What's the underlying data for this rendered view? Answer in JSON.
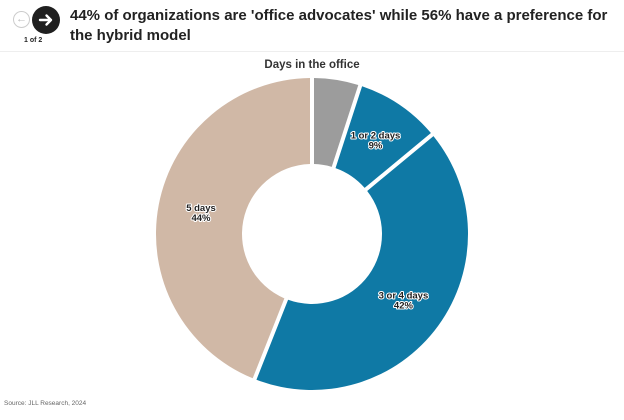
{
  "nav": {
    "count_text": "1 of 2",
    "prev_icon": "arrow-left-icon",
    "next_icon": "arrow-right-icon"
  },
  "headline": "44% of organizations are 'office advocates' while 56% have a preference for the hybrid model",
  "source": "Source: JLL Research, 2024",
  "chart_data": {
    "type": "pie",
    "style": "donut",
    "title": "Days in the office",
    "categories": [
      "",
      "1 or 2 days",
      "3 or 4 days",
      "5 days"
    ],
    "values": [
      5,
      9,
      42,
      44
    ],
    "value_labels": [
      "",
      "9%",
      "42%",
      "44%"
    ],
    "colors": [
      "#9c9c9c",
      "#0f79a5",
      "#0f79a5",
      "#d0b8a6"
    ]
  }
}
